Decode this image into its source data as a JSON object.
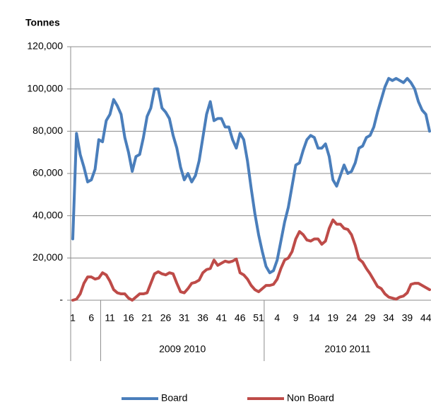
{
  "chart_data": {
    "type": "line",
    "y_axis_title": "Tonnes",
    "groups": [
      {
        "label": null,
        "categories": [
          "1",
          null,
          null,
          null,
          null,
          "6",
          null,
          null
        ]
      },
      {
        "label": "2009 2010",
        "categories": [
          null,
          null,
          "11",
          null,
          null,
          null,
          null,
          "16",
          null,
          null,
          null,
          null,
          "21",
          null,
          null,
          null,
          null,
          "26",
          null,
          null,
          null,
          null,
          "31",
          null,
          null,
          null,
          null,
          "36",
          null,
          null,
          null,
          null,
          "41",
          null,
          null,
          null,
          null,
          "46",
          null,
          null,
          null,
          null,
          "51",
          null
        ]
      },
      {
        "label": "2010 2011",
        "categories": [
          null,
          null,
          null,
          "4",
          null,
          null,
          null,
          null,
          "9",
          null,
          null,
          null,
          null,
          "14",
          null,
          null,
          null,
          null,
          "19",
          null,
          null,
          null,
          null,
          "24",
          null,
          null,
          null,
          null,
          "29",
          null,
          null,
          null,
          null,
          "34",
          null,
          null,
          null,
          null,
          "39",
          null,
          null,
          null,
          null,
          "44",
          null
        ]
      }
    ],
    "series": [
      {
        "name": "Board",
        "color": "#4a7ebb",
        "values": [
          29000,
          79000,
          69000,
          63000,
          56000,
          57000,
          62000,
          76000,
          75000,
          85000,
          88000,
          95000,
          92000,
          88000,
          77000,
          70000,
          61000,
          68000,
          69000,
          77000,
          87000,
          91000,
          100000,
          100000,
          91000,
          89000,
          86000,
          78000,
          72000,
          63000,
          57000,
          60000,
          56000,
          59000,
          66000,
          77000,
          88000,
          94000,
          85000,
          86000,
          86000,
          82000,
          82000,
          76000,
          72000,
          79000,
          76000,
          66000,
          53000,
          41000,
          31000,
          23000,
          16000,
          13000,
          14000,
          19000,
          28000,
          37000,
          44000,
          54000,
          64000,
          65000,
          71000,
          76000,
          78000,
          77000,
          72000,
          72000,
          74000,
          68000,
          57000,
          54000,
          59000,
          64000,
          60000,
          61000,
          65000,
          72000,
          73000,
          77000,
          78000,
          82000,
          89000,
          95000,
          101000,
          105000,
          104000,
          105000,
          104000,
          103000,
          105000,
          103000,
          100000,
          94000,
          90000,
          88000,
          80000
        ]
      },
      {
        "name": "Non Board",
        "color": "#be4b48",
        "values": [
          0,
          500,
          3000,
          8000,
          11000,
          11000,
          10000,
          10500,
          13000,
          12000,
          9000,
          5000,
          3500,
          3000,
          3000,
          1000,
          0,
          1500,
          3000,
          3000,
          3500,
          8000,
          12500,
          13500,
          12500,
          12000,
          13000,
          12500,
          8000,
          4000,
          3500,
          5500,
          8000,
          8500,
          9500,
          13000,
          14500,
          15000,
          19000,
          16500,
          17500,
          18500,
          18000,
          18500,
          19500,
          13000,
          12000,
          10000,
          7000,
          5000,
          4000,
          5500,
          7000,
          7000,
          7500,
          10000,
          15000,
          19000,
          20000,
          23000,
          29000,
          32500,
          31000,
          28500,
          28000,
          29000,
          29000,
          26500,
          28000,
          34000,
          38000,
          36000,
          36000,
          34000,
          33500,
          31000,
          26000,
          19500,
          18000,
          15000,
          12500,
          9500,
          6500,
          5500,
          3000,
          1500,
          1000,
          500,
          1500,
          2000,
          3500,
          7500,
          8000,
          8000,
          7000,
          6000,
          5000
        ]
      }
    ],
    "ylim": [
      0,
      120000
    ],
    "yticks": [
      {
        "value": 0,
        "label": "-"
      },
      {
        "value": 20000,
        "label": "20,000"
      },
      {
        "value": 40000,
        "label": "40,000"
      },
      {
        "value": 60000,
        "label": "60,000"
      },
      {
        "value": 80000,
        "label": "80,000"
      },
      {
        "value": 100000,
        "label": "100,000"
      },
      {
        "value": 120000,
        "label": "120,000"
      }
    ],
    "grid": true,
    "legend": "bottom"
  }
}
